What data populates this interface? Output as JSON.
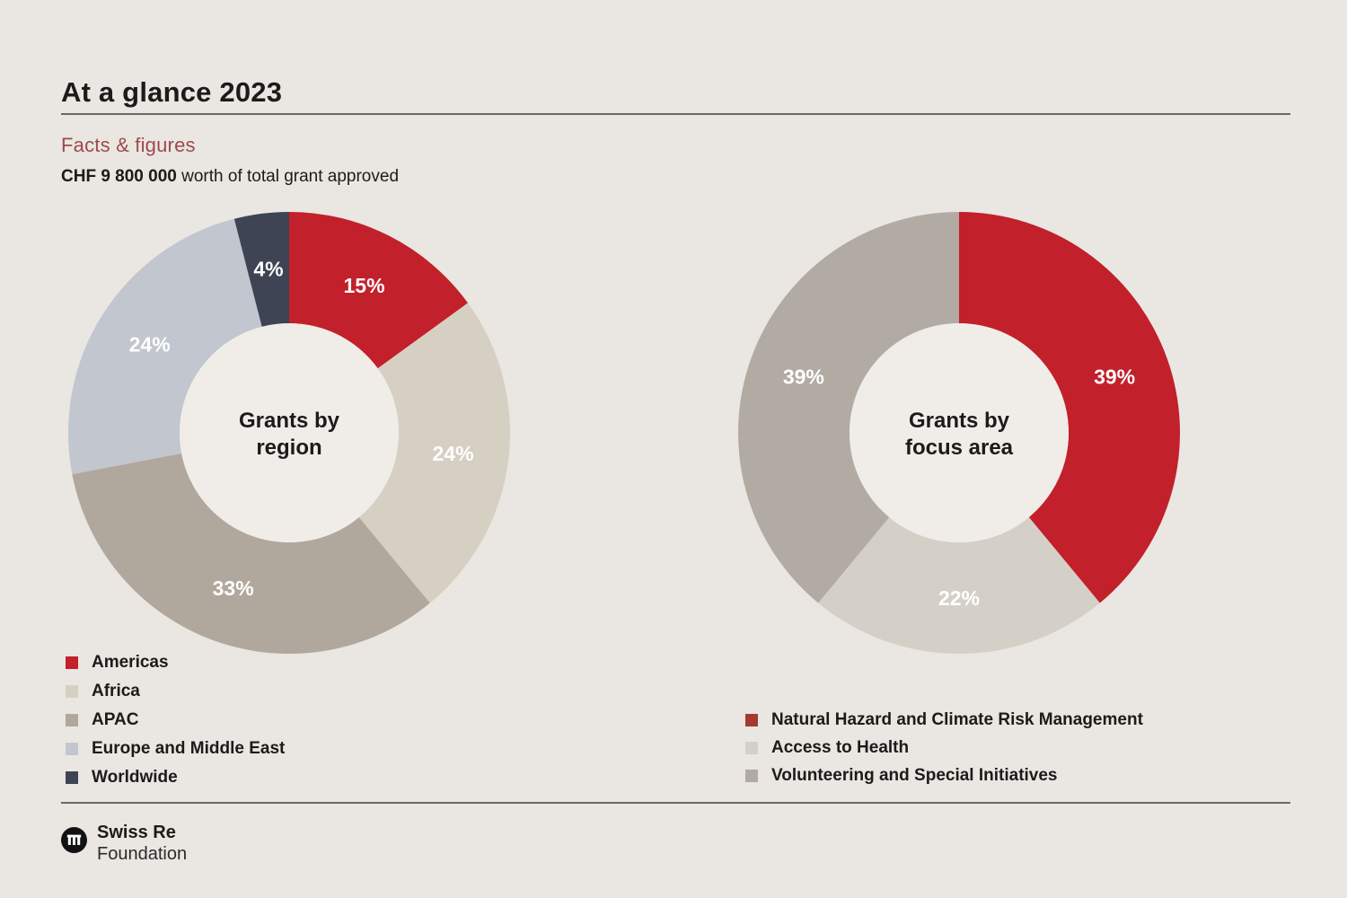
{
  "page": {
    "title": "At a glance 2023",
    "section_label": "Facts & figures"
  },
  "stats": {
    "amount": "CHF 9 800 000",
    "description": " worth of total grant approved"
  },
  "colors": {
    "background": "#EAE6E1",
    "hole": "#F0EDE8",
    "accent_red": "#C2202B",
    "rule": "#6B6864",
    "section_label": "#9E4A4F",
    "text": "#1B1B1B"
  },
  "chart_data": [
    {
      "type": "pie",
      "donut": true,
      "title": "Grants by region",
      "center_label_lines": [
        "Grants by",
        "region"
      ],
      "categories": [
        "Americas",
        "Africa",
        "APAC",
        "Europe and Middle East",
        "Worldwide"
      ],
      "values": [
        15,
        24,
        33,
        24,
        4
      ],
      "unit": "%",
      "colors": [
        "#C2202B",
        "#D6D0C3",
        "#B1A89D",
        "#C2C6CE",
        "#3E4454"
      ],
      "legend_position": "bottom-left",
      "start_angle_deg": 0,
      "direction": "clockwise"
    },
    {
      "type": "pie",
      "donut": true,
      "title": "Grants by focus area",
      "center_label_lines": [
        "Grants by",
        "focus area"
      ],
      "categories": [
        "Natural Hazard and Climate Risk Management",
        "Access to Health",
        "Volunteering and Special Initiatives"
      ],
      "values": [
        39,
        22,
        39
      ],
      "unit": "%",
      "colors": [
        "#C2202B",
        "#D5D0C7",
        "#B2ABA4"
      ],
      "legend_colors": [
        "#A33B33",
        "#D5D0C7",
        "#B2ABA4"
      ],
      "legend_position": "bottom-left",
      "start_angle_deg": 0,
      "direction": "clockwise"
    }
  ],
  "footer": {
    "brand_name": "Swiss Re",
    "brand_sub": "Foundation",
    "logo_icon": "swiss-re-circle-logo"
  }
}
